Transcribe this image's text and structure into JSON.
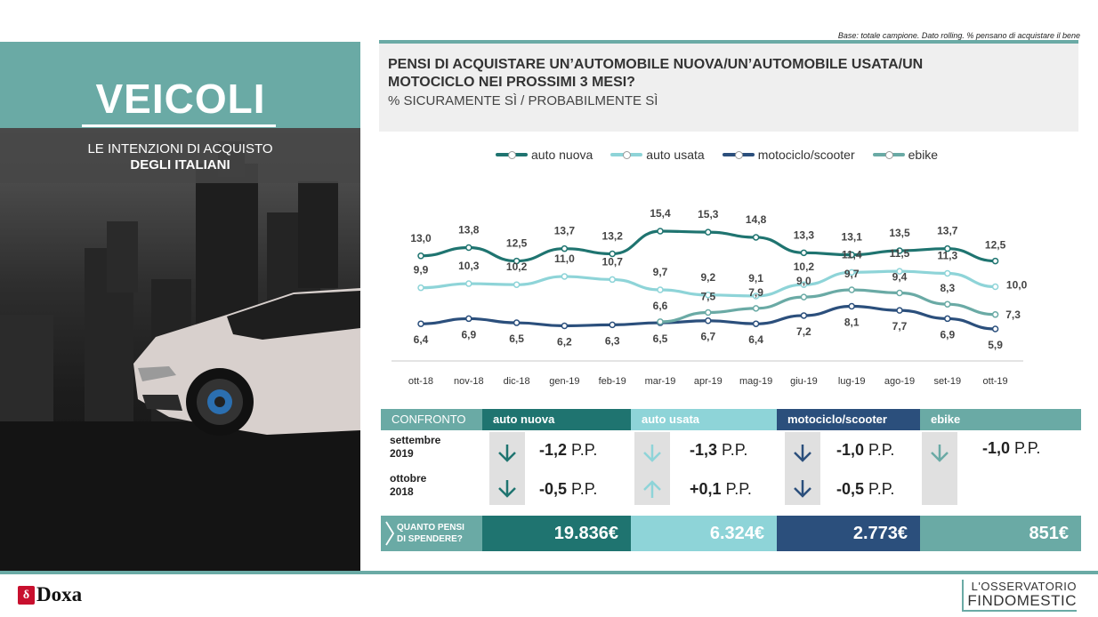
{
  "left": {
    "title": "VEICOLI",
    "subtitle_line1": "LE INTENZIONI DI ACQUISTO",
    "subtitle_line2": "DEGLI ITALIANI"
  },
  "header": {
    "base_note": "Base: totale campione. Dato rolling. % pensano di acquistare il bene",
    "title": "PENSI DI ACQUISTARE UN’AUTOMOBILE NUOVA/UN’AUTOMOBILE USATA/UN MOTOCICLO  NEI PROSSIMI 3 MESI?",
    "subtitle": "% SICURAMENTE SÌ / PROBABILMENTE SÌ"
  },
  "colors": {
    "auto_nuova": "#1f7470",
    "auto_usata": "#8ed4d8",
    "moto": "#2b4f7c",
    "ebike": "#6aaaa5",
    "teal": "#6aaaa5"
  },
  "chart_data": {
    "type": "line",
    "categories": [
      "ott-18",
      "nov-18",
      "dic-18",
      "gen-19",
      "feb-19",
      "mar-19",
      "apr-19",
      "mag-19",
      "giu-19",
      "lug-19",
      "ago-19",
      "set-19",
      "ott-19"
    ],
    "series": [
      {
        "name": "auto nuova",
        "key": "auto_nuova",
        "values": [
          13.0,
          13.8,
          12.5,
          13.7,
          13.2,
          15.4,
          15.3,
          14.8,
          13.3,
          13.1,
          13.5,
          13.7,
          12.5
        ],
        "labels": [
          "13,0",
          "13,8",
          "12,5",
          "13,7",
          "13,2",
          "15,4",
          "15,3",
          "14,8",
          "13,3",
          "13,1",
          "13,5",
          "13,7",
          "12,5"
        ]
      },
      {
        "name": "auto usata",
        "key": "auto_usata",
        "values": [
          9.9,
          10.3,
          10.2,
          11.0,
          10.7,
          9.7,
          9.2,
          9.1,
          10.2,
          11.4,
          11.5,
          11.3,
          10.0
        ],
        "labels": [
          "9,9",
          "10,3",
          "10,2",
          "11,0",
          "10,7",
          "9,7",
          "9,2",
          "9,1",
          "10,2",
          "11,4",
          "11,5",
          "11,3",
          "10,0"
        ]
      },
      {
        "name": "motociclo/scooter",
        "key": "moto",
        "values": [
          6.4,
          6.9,
          6.5,
          6.2,
          6.3,
          6.5,
          6.7,
          6.4,
          7.2,
          8.1,
          7.7,
          6.9,
          5.9
        ],
        "labels": [
          "6,4",
          "6,9",
          "6,5",
          "6,2",
          "6,3",
          "6,5",
          "6,7",
          "6,4",
          "7,2",
          "8,1",
          "7,7",
          "6,9",
          "5,9"
        ]
      },
      {
        "name": "ebike",
        "key": "ebike",
        "values": [
          null,
          null,
          null,
          null,
          null,
          6.6,
          7.5,
          7.9,
          9.0,
          9.7,
          9.4,
          8.3,
          7.3
        ],
        "labels": [
          "",
          "",
          "",
          "",
          "",
          "6,6",
          "7,5",
          "7,9",
          "9,0",
          "9,7",
          "9,4",
          "8,3",
          "7,3"
        ]
      }
    ],
    "legend_position": "top"
  },
  "table": {
    "header_label": "CONFRONTO",
    "columns": [
      "auto nuova",
      "auto usata",
      "motociclo/scooter",
      "ebike"
    ],
    "rows": [
      {
        "label_line1": "settembre",
        "label_line2": "2019",
        "values": [
          "-1,2",
          "-1,3",
          "-1,0",
          "-1,0"
        ],
        "unit": "P.P.",
        "directions": [
          "down",
          "down",
          "down",
          "down"
        ]
      },
      {
        "label_line1": "ottobre",
        "label_line2": "2018",
        "values": [
          "-0,5",
          "+0,1",
          "-0,5"
        ],
        "unit": "P.P.",
        "directions": [
          "down",
          "up",
          "down"
        ]
      }
    ]
  },
  "spend": {
    "label_line1": "QUANTO PENSI",
    "label_line2": "DI SPENDERE?",
    "values": [
      "19.836€",
      "6.324€",
      "2.773€",
      "851€"
    ]
  },
  "footer": {
    "doxa": "Doxa",
    "doxa_mark": "δ",
    "findo_line1": "L'OSSERVATORIO",
    "findo_line2": "FINDOMESTIC"
  }
}
